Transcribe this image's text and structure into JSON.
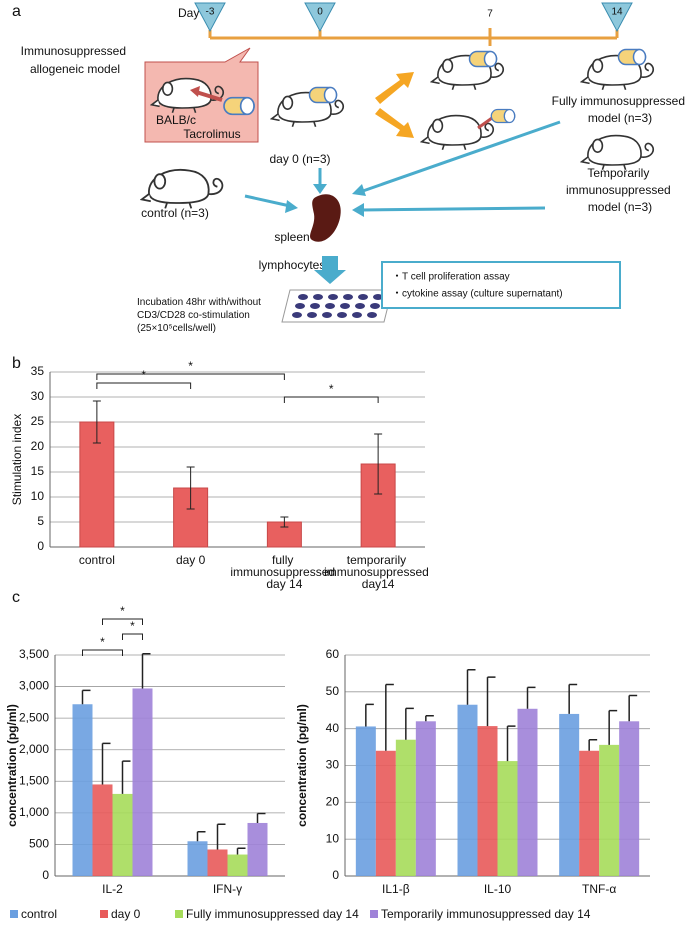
{
  "panel_labels": [
    "a",
    "b",
    "c"
  ],
  "timeline": {
    "label": "Day",
    "days": [
      "-3",
      "0",
      "7",
      "14"
    ]
  },
  "model_title": "Immunosuppressed allogeneic model",
  "strain": "BALB/c",
  "drug": "Tacrolimus",
  "groups": {
    "day0": "day 0 (n=3)",
    "fully": "Fully immunosuppressed model (n=3)",
    "temporarily": "Temporarily immunosuppressed model (n=3)",
    "control": "control (n=3)"
  },
  "spleen": "spleen",
  "lymphocytes": "lymphocytes",
  "incubation": "Incubation 48hr with/without CD3/CD28 co-stimulation (25×10⁵cells/well)",
  "assays": [
    "・T cell proliferation assay",
    "・cytokine assay (culture supernatant)"
  ],
  "chart_data": [
    {
      "type": "bar",
      "ylabel": "Stimulation index",
      "categories": [
        "control",
        "day 0",
        "fully immunosuppressed day 14",
        "temporarily immunosuppressed day14"
      ],
      "values": [
        25,
        11.8,
        5,
        16.6
      ],
      "errors": [
        4.2,
        4.2,
        1,
        6
      ],
      "color": "#e8605f",
      "ylim": [
        0,
        35
      ],
      "yticks": [
        0,
        5,
        10,
        15,
        20,
        25,
        30,
        35
      ],
      "grid": true,
      "significance": [
        "*",
        "*",
        "*"
      ]
    },
    {
      "type": "grouped_bar",
      "ylabel": "concentration (pg/ml)",
      "categories": [
        "IL-2",
        "IFN-γ"
      ],
      "series": [
        {
          "name": "control",
          "color": "#6a9fe0",
          "values": [
            2720,
            550
          ],
          "errors": [
            220,
            150
          ]
        },
        {
          "name": "day 0",
          "color": "#e85a5a",
          "values": [
            1450,
            420
          ],
          "errors": [
            650,
            400
          ]
        },
        {
          "name": "Fully immunosuppressed day 14",
          "color": "#a6dc5a",
          "values": [
            1300,
            340
          ],
          "errors": [
            520,
            100
          ]
        },
        {
          "name": "Temporarily immunosuppressed day 14",
          "color": "#9f82d8",
          "values": [
            2970,
            840
          ],
          "errors": [
            550,
            150
          ]
        }
      ],
      "ylim": [
        0,
        3500
      ],
      "yticks": [
        0,
        500,
        {
          "value": 1000,
          "label": "1,000"
        },
        {
          "value": 1500,
          "label": "1,500"
        },
        {
          "value": 2000,
          "label": "2,000"
        },
        {
          "value": 2500,
          "label": "2,500"
        },
        {
          "value": 3000,
          "label": "3,000"
        },
        {
          "value": 3500,
          "label": "3,500"
        }
      ],
      "grid": true,
      "significance": [
        "*",
        "*",
        "*"
      ]
    },
    {
      "type": "grouped_bar",
      "ylabel": "concentration (pg/ml)",
      "categories": [
        "IL1-β",
        "IL-10",
        "TNF-α"
      ],
      "series": [
        {
          "color": "#6a9fe0",
          "values": [
            40.6,
            46.5,
            44
          ],
          "errors": [
            6,
            9.5,
            8
          ]
        },
        {
          "color": "#e85a5a",
          "values": [
            34,
            40.7,
            34
          ],
          "errors": [
            18,
            13.3,
            3
          ]
        },
        {
          "color": "#a6dc5a",
          "values": [
            37,
            31.2,
            35.6
          ],
          "errors": [
            8.5,
            9.5,
            9.3
          ]
        },
        {
          "color": "#9f82d8",
          "values": [
            42,
            45.4,
            42
          ],
          "errors": [
            1.5,
            5.8,
            7
          ]
        }
      ],
      "ylim": [
        0,
        60
      ],
      "yticks": [
        0,
        10,
        20,
        30,
        40,
        50,
        60
      ],
      "grid": true
    }
  ]
}
